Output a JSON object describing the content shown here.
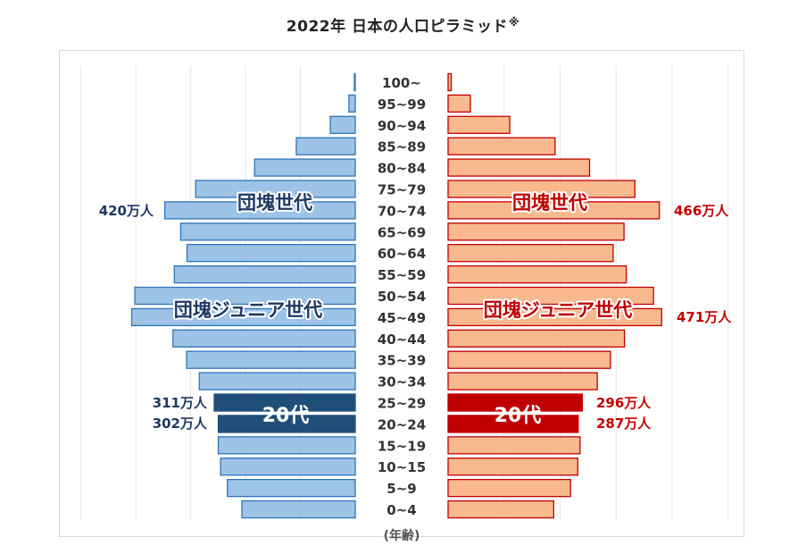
{
  "title": "2022年 日本の人口ピラミッド",
  "title_note": "※",
  "chart_data": {
    "type": "bar",
    "title": "2022年 日本の人口ピラミッド※",
    "ylabel": "(年齢)",
    "categories": [
      "0~4",
      "5~9",
      "10~15",
      "15~19",
      "20~24",
      "25~29",
      "30~34",
      "35~39",
      "40~44",
      "45~49",
      "50~54",
      "55~59",
      "60~64",
      "65~69",
      "70~74",
      "75~79",
      "80~84",
      "85~89",
      "90~94",
      "95~99",
      "100~"
    ],
    "category_labels": [
      "0~4",
      "5~9",
      "10~15",
      "15~19",
      "20~24",
      "25~29",
      "30~34",
      "35~39",
      "40~44",
      "45~49",
      "50~54",
      "55~59",
      "60~64",
      "65~69",
      "70~74",
      "75~79",
      "80~84",
      "85~89",
      "90~94",
      "95~99",
      "100~"
    ],
    "series": [
      {
        "side": "left",
        "values": [
          250,
          282,
          297,
          302,
          302,
          311,
          344,
          372,
          402,
          493,
          486,
          399,
          371,
          385,
          420,
          352,
          222,
          130,
          55,
          14,
          2
        ]
      },
      {
        "side": "right",
        "values": [
          233,
          270,
          286,
          291,
          287,
          296,
          329,
          358,
          389,
          471,
          453,
          393,
          364,
          388,
          466,
          412,
          312,
          236,
          136,
          49,
          7
        ]
      }
    ],
    "xlim": [
      0,
      500
    ],
    "highlight_categories": [
      "20~24",
      "25~29"
    ],
    "colors": {
      "left": "#9dc3e6",
      "left_edge": "#2e75b6",
      "left_highlight": "#1f4e79",
      "right": "#f8b98e",
      "right_edge": "#c00000",
      "right_highlight": "#c00000"
    },
    "annotations": {
      "left_generation_1": "団塊世代",
      "right_generation_1": "団塊世代",
      "left_generation_2": "団塊ジュニア世代",
      "right_generation_2": "団塊ジュニア世代",
      "left_20s": "20代",
      "right_20s": "20代",
      "left_70_74": "420万人",
      "right_70_74": "466万人",
      "right_45_49": "471万人",
      "left_25_29": "311万人",
      "left_20_24": "302万人",
      "right_25_29": "296万人",
      "right_20_24": "287万人"
    }
  }
}
